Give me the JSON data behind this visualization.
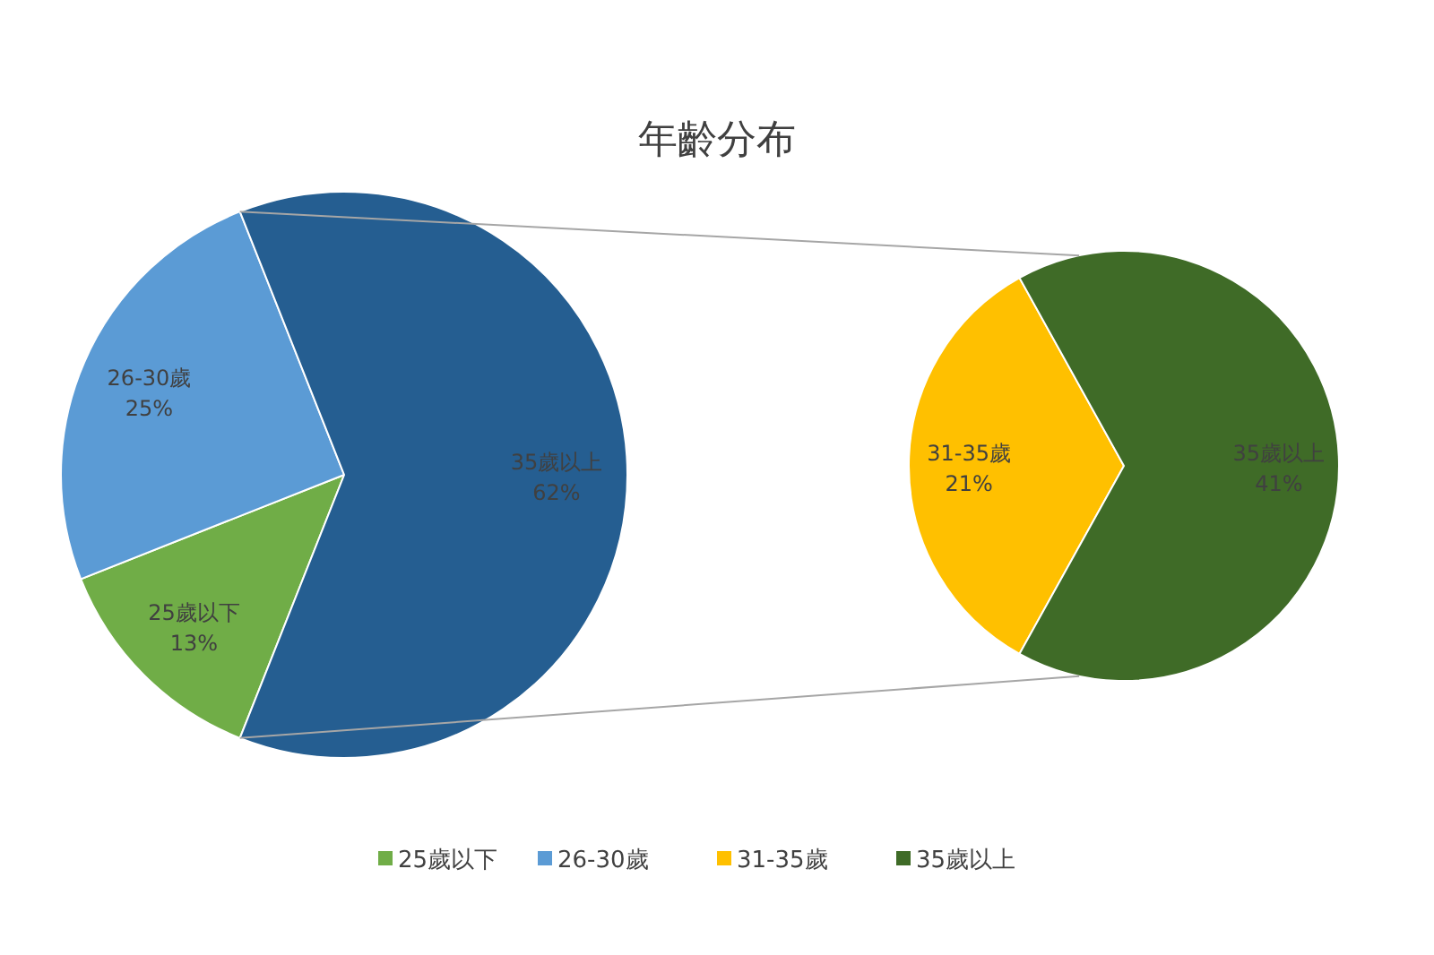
{
  "chart_data": [
    {
      "type": "pie",
      "title": "年齡分布",
      "categories": [
        "25歲以下",
        "26-30歲",
        "35歲以上"
      ],
      "values": [
        13,
        25,
        62
      ],
      "value_labels": [
        "13%",
        "25%",
        "62%"
      ],
      "colors": [
        "#70ad47",
        "#5b9bd5",
        "#255e91"
      ],
      "legend": "bottom"
    },
    {
      "type": "pie",
      "categories": [
        "31-35歲",
        "35歲以上"
      ],
      "values": [
        21,
        41
      ],
      "value_labels": [
        "21%",
        "41%"
      ],
      "colors": [
        "#ffc000",
        "#3f6b27"
      ],
      "legend": "bottom"
    }
  ]
}
